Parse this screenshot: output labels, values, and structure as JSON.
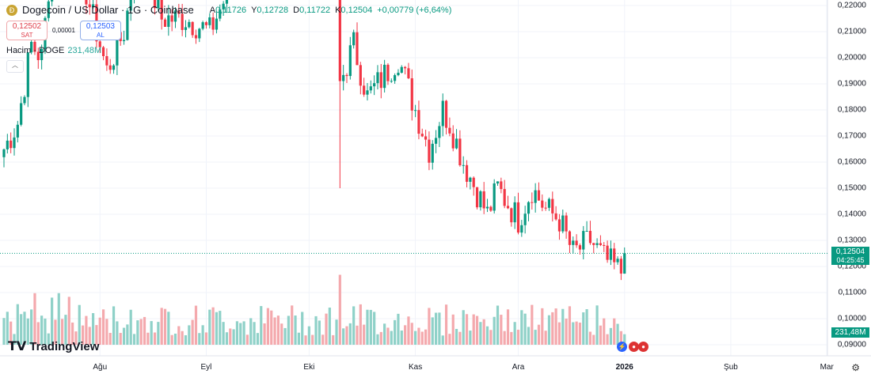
{
  "header": {
    "symbol_icon": "doge-coin-icon",
    "title": "Dogecoin / US Dollar · 1G · Coinbase",
    "ohlc": {
      "o_label": "A",
      "o": "0,11726",
      "h_label": "Y",
      "h": "0,12728",
      "l_label": "D",
      "l": "0,11722",
      "c_label": "K",
      "c": "0,12504",
      "change": "+0,00779 (+6,64%)"
    }
  },
  "trade": {
    "sell_price": "0,12502",
    "sell_label": "SAT",
    "spread": "0,00001",
    "buy_price": "0,12503",
    "buy_label": "AL"
  },
  "volume": {
    "label": "Hacim · DOGE",
    "value": "231,48M"
  },
  "price_tag": {
    "price": "0,12504",
    "countdown": "04:25:45"
  },
  "volume_tag": "231,48M",
  "logo": "TradingView",
  "colors": {
    "up": "#089981",
    "down": "#f23645",
    "vol_up": "#8fd1c8",
    "vol_down": "#f4a9ad"
  },
  "chart_data": {
    "type": "candlestick",
    "y_ticks": [
      "0,22000",
      "0,21000",
      "0,20000",
      "0,19000",
      "0,18000",
      "0,17000",
      "0,16000",
      "0,15000",
      "0,14000",
      "0,13000",
      "0,12000",
      "0,11000",
      "0,10000",
      "0,09000"
    ],
    "ylim": [
      0.09,
      0.22
    ],
    "x_ticks": [
      {
        "label": "Ağu",
        "day": 28
      },
      {
        "label": "Eyl",
        "day": 59
      },
      {
        "label": "Eki",
        "day": 89
      },
      {
        "label": "Kas",
        "day": 120
      },
      {
        "label": "Ara",
        "day": 150
      },
      {
        "label": "2026",
        "day": 181,
        "bold": true
      },
      {
        "label": "Şub",
        "day": 212
      },
      {
        "label": "Mar",
        "day": 240
      }
    ],
    "close_keypoints": [
      [
        0,
        0.165
      ],
      [
        4,
        0.175
      ],
      [
        8,
        0.205
      ],
      [
        11,
        0.2
      ],
      [
        14,
        0.24
      ],
      [
        23,
        0.23
      ],
      [
        30,
        0.195
      ],
      [
        35,
        0.21
      ],
      [
        39,
        0.24
      ],
      [
        46,
        0.215
      ],
      [
        53,
        0.215
      ],
      [
        60,
        0.21
      ],
      [
        67,
        0.23
      ],
      [
        70,
        0.26
      ],
      [
        97,
        0.25
      ],
      [
        98,
        0.19
      ],
      [
        102,
        0.205
      ],
      [
        106,
        0.185
      ],
      [
        115,
        0.2
      ],
      [
        120,
        0.18
      ],
      [
        124,
        0.165
      ],
      [
        128,
        0.18
      ],
      [
        130,
        0.175
      ],
      [
        134,
        0.16
      ],
      [
        141,
        0.14
      ],
      [
        144,
        0.15
      ],
      [
        150,
        0.138
      ],
      [
        154,
        0.15
      ],
      [
        158,
        0.142
      ],
      [
        162,
        0.138
      ],
      [
        166,
        0.125
      ],
      [
        171,
        0.13
      ],
      [
        175,
        0.123
      ],
      [
        180,
        0.118
      ],
      [
        181,
        0.12504
      ]
    ],
    "last_candle": {
      "open": 0.11726,
      "high": 0.12728,
      "low": 0.11722,
      "close": 0.12504,
      "volume_m": 231.48
    }
  }
}
